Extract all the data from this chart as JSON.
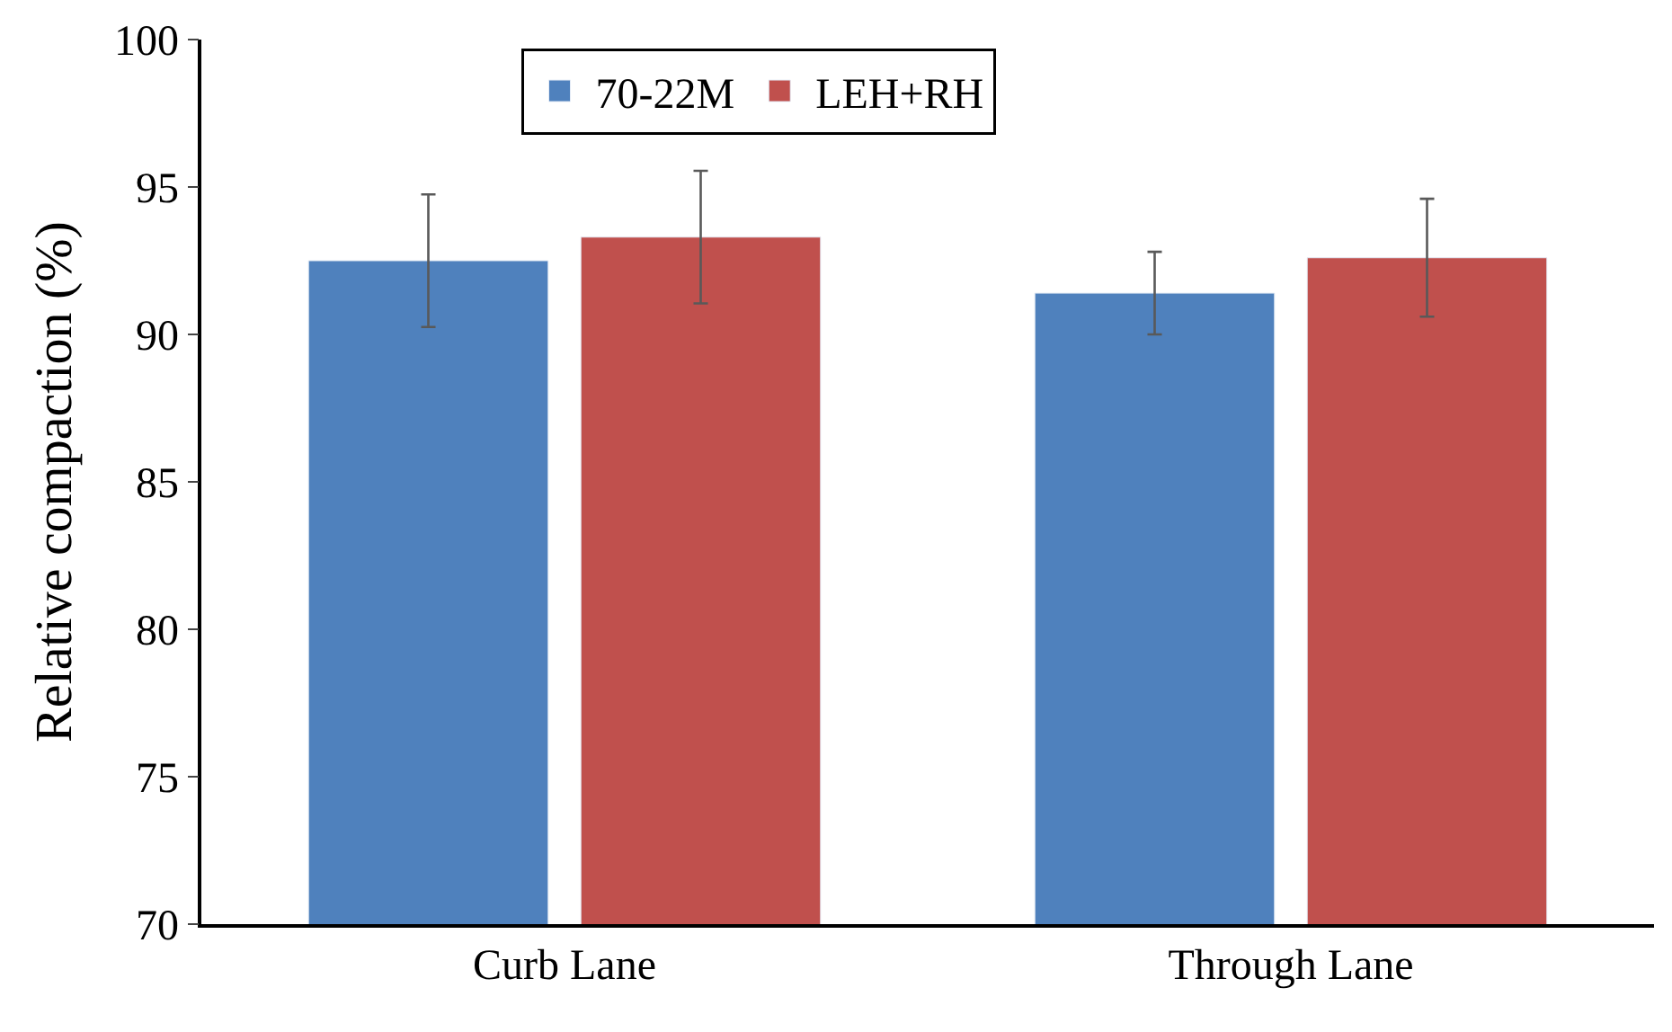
{
  "chart_data": {
    "type": "bar",
    "ylabel": "Relative compaction (%)",
    "categories": [
      "Curb Lane",
      "Through Lane"
    ],
    "series": [
      {
        "name": "70-22M",
        "color": "#4f81bd",
        "values": [
          92.5,
          91.4
        ],
        "errors": [
          2.25,
          1.4
        ]
      },
      {
        "name": "LEH+RH",
        "color": "#c0504d",
        "values": [
          93.3,
          92.6
        ],
        "errors": [
          2.25,
          2.0
        ]
      }
    ],
    "ylim": [
      70,
      100
    ],
    "yticks": [
      70,
      75,
      80,
      85,
      90,
      95,
      100
    ],
    "grid": false,
    "legend": "top"
  }
}
